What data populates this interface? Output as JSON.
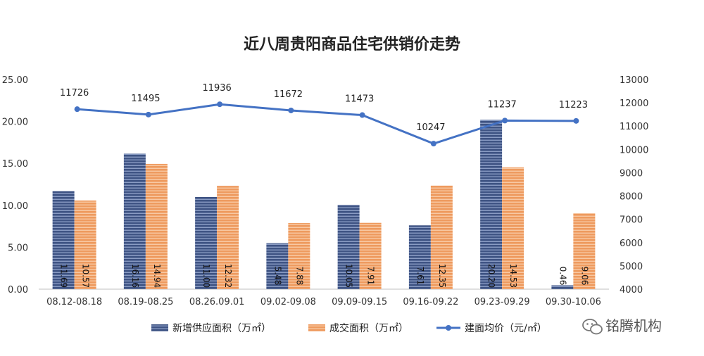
{
  "chart_data": {
    "type": "bar",
    "title": "近八周贵阳商品住宅供销价走势",
    "categories": [
      "08.12-08.18",
      "08.19-08.25",
      "08.26.09.01",
      "09.02-09.08",
      "09.09-09.15",
      "09.16-09.22",
      "09.23-09.29",
      "09.30-10.06"
    ],
    "series": [
      {
        "name": "新增供应面积（万㎡）",
        "kind": "bar",
        "axis": "left",
        "color": "#4a5f8c",
        "values": [
          11.69,
          16.16,
          11.0,
          5.48,
          10.05,
          7.61,
          20.2,
          0.46
        ],
        "labels": [
          "11.69",
          "16.16",
          "11.00",
          "5.48",
          "10.05",
          "7.61",
          "20.20",
          "0.46"
        ]
      },
      {
        "name": "成交面积（万㎡）",
        "kind": "bar",
        "axis": "left",
        "color": "#f0a065",
        "values": [
          10.57,
          14.94,
          12.32,
          7.88,
          7.91,
          12.35,
          14.53,
          9.06
        ],
        "labels": [
          "10.57",
          "14.94",
          "12.32",
          "7.88",
          "7.91",
          "12.35",
          "14.53",
          "9.06"
        ]
      },
      {
        "name": "建面均价（元/㎡）",
        "kind": "line",
        "axis": "right",
        "color": "#4472c4",
        "values": [
          11726,
          11495,
          11936,
          11672,
          11473,
          10247,
          11237,
          11223
        ],
        "labels": [
          "11726",
          "11495",
          "11936",
          "11672",
          "11473",
          "10247",
          "11237",
          "11223"
        ]
      }
    ],
    "y_left": {
      "range": [
        0,
        25
      ],
      "ticks": [
        "0.00",
        "5.00",
        "10.00",
        "15.00",
        "20.00",
        "25.00"
      ]
    },
    "y_right": {
      "range": [
        4000,
        13000
      ],
      "ticks": [
        "4000",
        "5000",
        "6000",
        "7000",
        "8000",
        "9000",
        "10000",
        "11000",
        "12000",
        "13000"
      ]
    },
    "grid": false,
    "legend_position": "bottom"
  },
  "watermark": {
    "icon": "wechat-icon",
    "text": "铭腾机构"
  }
}
